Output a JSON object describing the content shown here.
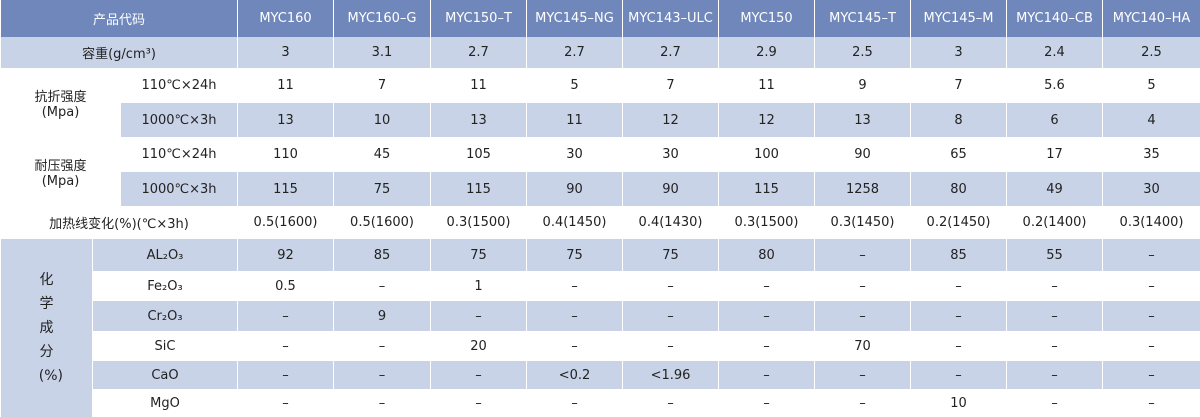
{
  "header": {
    "label": "产品代码",
    "columns": [
      "MYC160",
      "MYC160–G",
      "MYC150–T",
      "MYC145–NG",
      "MYC143–ULC",
      "MYC150",
      "MYC145–T",
      "MYC145–M",
      "MYC140–CB",
      "MYC140–HA"
    ]
  },
  "density": {
    "label": "容重(g/cm³)",
    "values": [
      3,
      3.1,
      2.7,
      2.7,
      2.7,
      2.9,
      2.5,
      3,
      2.4,
      2.5
    ]
  },
  "flexural": {
    "label": "抗折强度",
    "unit": "(Mpa)",
    "rows": [
      {
        "condition": "110℃×24h",
        "values": [
          11,
          7,
          11,
          5,
          7,
          11,
          9,
          7,
          5.6,
          5
        ]
      },
      {
        "condition": "1000℃×3h",
        "values": [
          13,
          10,
          13,
          11,
          12,
          12,
          13,
          8,
          6,
          4
        ]
      }
    ]
  },
  "compressive": {
    "label": "耐压强度",
    "unit": "(Mpa)",
    "rows": [
      {
        "condition": "110℃×24h",
        "values": [
          110,
          45,
          105,
          30,
          30,
          100,
          90,
          65,
          17,
          35
        ]
      },
      {
        "condition": "1000℃×3h",
        "values": [
          115,
          75,
          115,
          90,
          90,
          115,
          1258,
          80,
          49,
          30
        ]
      }
    ]
  },
  "linear_change": {
    "label": "加热线变化(%)(℃×3h)",
    "values": [
      "0.5(1600)",
      "0.5(1600)",
      "0.3(1500)",
      "0.4(1450)",
      "0.4(1430)",
      "0.3(1500)",
      "0.3(1450)",
      "0.2(1450)",
      "0.2(1400)",
      "0.3(1400)"
    ]
  },
  "chemistry": {
    "label": "化学成分",
    "unit": "(%)",
    "rows": [
      {
        "component": "AL₂O₃",
        "values": [
          "92",
          "85",
          "75",
          "75",
          "75",
          "80",
          "–",
          "85",
          "55",
          "–"
        ]
      },
      {
        "component": "Fe₂O₃",
        "values": [
          "0.5",
          "–",
          "1",
          "–",
          "–",
          "–",
          "–",
          "–",
          "–",
          "–"
        ]
      },
      {
        "component": "Cr₂O₃",
        "values": [
          "–",
          "9",
          "–",
          "–",
          "–",
          "–",
          "–",
          "–",
          "–",
          "–"
        ]
      },
      {
        "component": "SiC",
        "values": [
          "–",
          "–",
          "20",
          "–",
          "–",
          "–",
          "70",
          "–",
          "–",
          "–"
        ]
      },
      {
        "component": "CaO",
        "values": [
          "–",
          "–",
          "–",
          "<0.2",
          "<1.96",
          "–",
          "–",
          "–",
          "–",
          "–"
        ]
      },
      {
        "component": "MgO",
        "values": [
          "–",
          "–",
          "–",
          "–",
          "–",
          "–",
          "–",
          "10",
          "–",
          "–"
        ]
      }
    ]
  }
}
